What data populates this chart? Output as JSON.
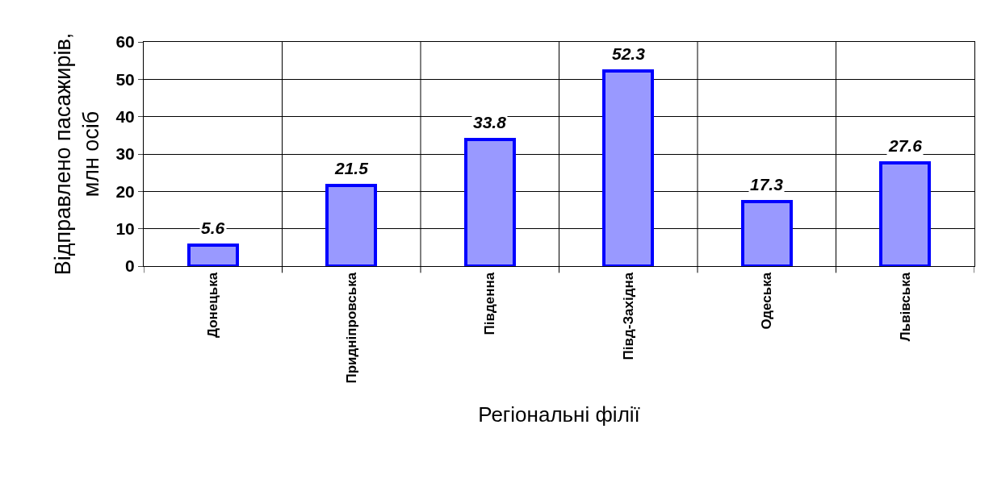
{
  "chart_data": {
    "type": "bar",
    "xlabel": "Регіональні філії",
    "ylabel": "Відправлено пасажирів,\nмлн осіб",
    "categories": [
      "Донецька",
      "Придніпровська",
      "Південна",
      "Півд-Західна",
      "Одеська",
      "Львівська"
    ],
    "values": [
      5.6,
      21.5,
      33.8,
      52.3,
      17.3,
      27.6
    ],
    "color": "#9999ff",
    "ylim": [
      0,
      60
    ],
    "yticks": [
      0,
      10,
      20,
      30,
      40,
      50,
      60
    ],
    "grid": true,
    "data_labels": true
  }
}
